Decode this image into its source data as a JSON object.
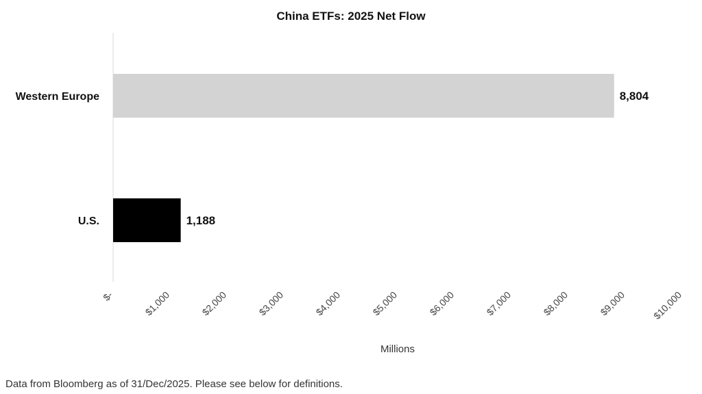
{
  "chart_data": {
    "type": "bar",
    "orientation": "horizontal",
    "title": "China ETFs: 2025 Net Flow",
    "categories": [
      "Western Europe",
      "U.S."
    ],
    "values": [
      8804,
      1188
    ],
    "value_labels": [
      "8,804",
      "1,188"
    ],
    "colors": [
      "#d3d3d3",
      "#000000"
    ],
    "xlabel": "Millions",
    "ylabel": "",
    "xlim": [
      0,
      10000
    ],
    "xticks": [
      0,
      1000,
      2000,
      3000,
      4000,
      5000,
      6000,
      7000,
      8000,
      9000,
      10000
    ],
    "xtick_labels": [
      "$-",
      "$1,000",
      "$2,000",
      "$3,000",
      "$4,000",
      "$5,000",
      "$6,000",
      "$7,000",
      "$8,000",
      "$9,000",
      "$10,000"
    ],
    "grid": false
  },
  "footnote": "Data from Bloomberg as of 31/Dec/2025. Please see below for definitions."
}
